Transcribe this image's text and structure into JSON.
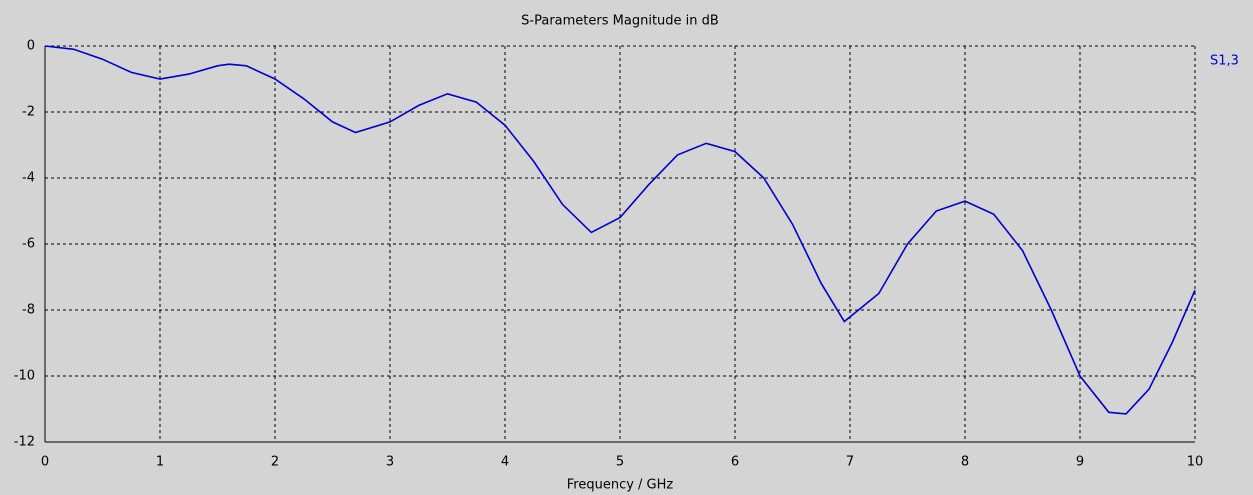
{
  "chart_data": {
    "type": "line",
    "title": "S-Parameters Magnitude in dB",
    "xlabel": "Frequency / GHz",
    "x": [
      0,
      0.25,
      0.5,
      0.75,
      1.0,
      1.25,
      1.5,
      1.6,
      1.75,
      2.0,
      2.25,
      2.5,
      2.7,
      3.0,
      3.25,
      3.5,
      3.75,
      4.0,
      4.25,
      4.5,
      4.75,
      5.0,
      5.25,
      5.5,
      5.75,
      6.0,
      6.25,
      6.5,
      6.75,
      6.95,
      7.25,
      7.5,
      7.75,
      8.0,
      8.25,
      8.5,
      8.75,
      9.0,
      9.25,
      9.4,
      9.6,
      9.8,
      10.0
    ],
    "series": [
      {
        "name": "S1,3",
        "color": "#0000cc",
        "values": [
          0,
          -0.1,
          -0.4,
          -0.8,
          -1.0,
          -0.85,
          -0.6,
          -0.55,
          -0.6,
          -1.0,
          -1.6,
          -2.3,
          -2.62,
          -2.3,
          -1.8,
          -1.45,
          -1.7,
          -2.4,
          -3.5,
          -4.8,
          -5.65,
          -5.2,
          -4.2,
          -3.3,
          -2.95,
          -3.2,
          -4.0,
          -5.4,
          -7.2,
          -8.35,
          -7.5,
          -6.0,
          -5.0,
          -4.7,
          -5.1,
          -6.2,
          -8.0,
          -10.0,
          -11.1,
          -11.15,
          -10.4,
          -9.0,
          -7.4
        ]
      }
    ],
    "xlim": [
      0,
      10
    ],
    "xticks": [
      0,
      1,
      2,
      3,
      4,
      5,
      6,
      7,
      8,
      9,
      10
    ],
    "ylim": [
      -12,
      0
    ],
    "yticks": [
      -12,
      -10,
      -8,
      -6,
      -4,
      -2,
      0
    ],
    "grid": true
  }
}
